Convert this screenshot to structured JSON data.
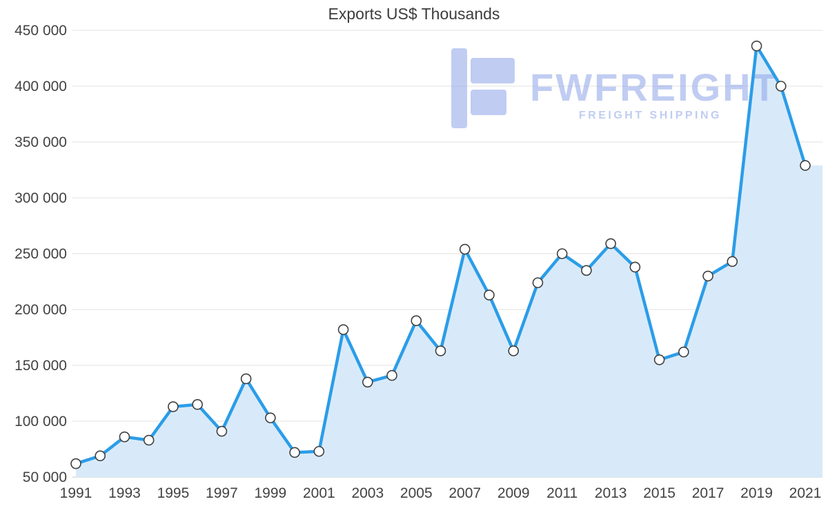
{
  "title": "Exports US$ Thousands",
  "watermark": {
    "brand": "FWFREIGHT",
    "tagline": "FREIGHT SHIPPING"
  },
  "chart_data": {
    "type": "area",
    "title": "Exports US$ Thousands",
    "categories": [
      1991,
      1992,
      1993,
      1994,
      1995,
      1996,
      1997,
      1998,
      1999,
      2000,
      2001,
      2002,
      2003,
      2004,
      2005,
      2006,
      2007,
      2008,
      2009,
      2010,
      2011,
      2012,
      2013,
      2014,
      2015,
      2016,
      2017,
      2018,
      2019,
      2020,
      2021
    ],
    "values": [
      62000,
      69000,
      86000,
      83000,
      113000,
      115000,
      91000,
      138000,
      103000,
      72000,
      73000,
      182000,
      135000,
      141000,
      190000,
      163000,
      254000,
      213000,
      163000,
      224000,
      250000,
      235000,
      259000,
      238000,
      155000,
      162000,
      230000,
      243000,
      436000,
      400000,
      329000
    ],
    "xlabel": "",
    "ylabel": "",
    "ylim": [
      50000,
      450000
    ],
    "ytick_step": 50000,
    "xtick_step": 2,
    "grid": "horizontal",
    "legend": "none",
    "colors": {
      "line": "#2b9de8",
      "fill": "#d8eafa",
      "marker_fill": "#ffffff",
      "marker_stroke": "#3f3f3f",
      "grid": "#e2e2e2",
      "axis": "#c4c4c4",
      "text": "#424242",
      "watermark": "#8da4e8"
    }
  }
}
